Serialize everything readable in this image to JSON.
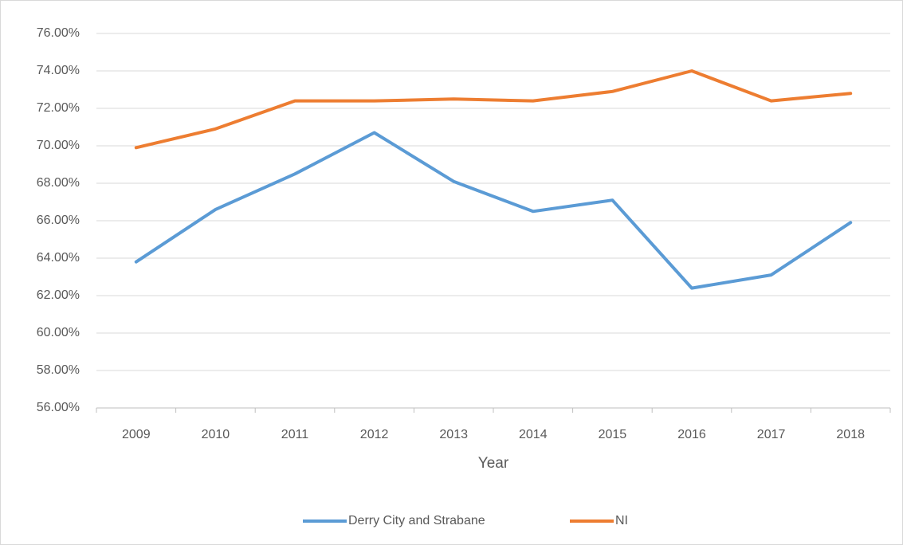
{
  "chart_data": {
    "type": "line",
    "x_label": "Year",
    "categories": [
      "2009",
      "2010",
      "2011",
      "2012",
      "2013",
      "2014",
      "2015",
      "2016",
      "2017",
      "2018"
    ],
    "series": [
      {
        "name": "Derry City and Strabane",
        "color": "#5b9bd5",
        "values": [
          63.8,
          66.6,
          68.5,
          70.7,
          68.1,
          66.5,
          67.1,
          62.4,
          63.1,
          65.9
        ]
      },
      {
        "name": "NI",
        "color": "#ed7d31",
        "values": [
          69.9,
          70.9,
          72.4,
          72.4,
          72.5,
          72.4,
          72.9,
          74.0,
          72.4,
          72.8
        ]
      }
    ],
    "ylim": [
      56,
      76
    ],
    "yticks": [
      {
        "value": 56,
        "label": "56.00%"
      },
      {
        "value": 58,
        "label": "58.00%"
      },
      {
        "value": 60,
        "label": "60.00%"
      },
      {
        "value": 62,
        "label": "62.00%"
      },
      {
        "value": 64,
        "label": "64.00%"
      },
      {
        "value": 66,
        "label": "66.00%"
      },
      {
        "value": 68,
        "label": "68.00%"
      },
      {
        "value": 70,
        "label": "70.00%"
      },
      {
        "value": 72,
        "label": "72.00%"
      },
      {
        "value": 74,
        "label": "74.00%"
      },
      {
        "value": 76,
        "label": "76.00%"
      }
    ],
    "grid": true,
    "legend": "bottom"
  }
}
